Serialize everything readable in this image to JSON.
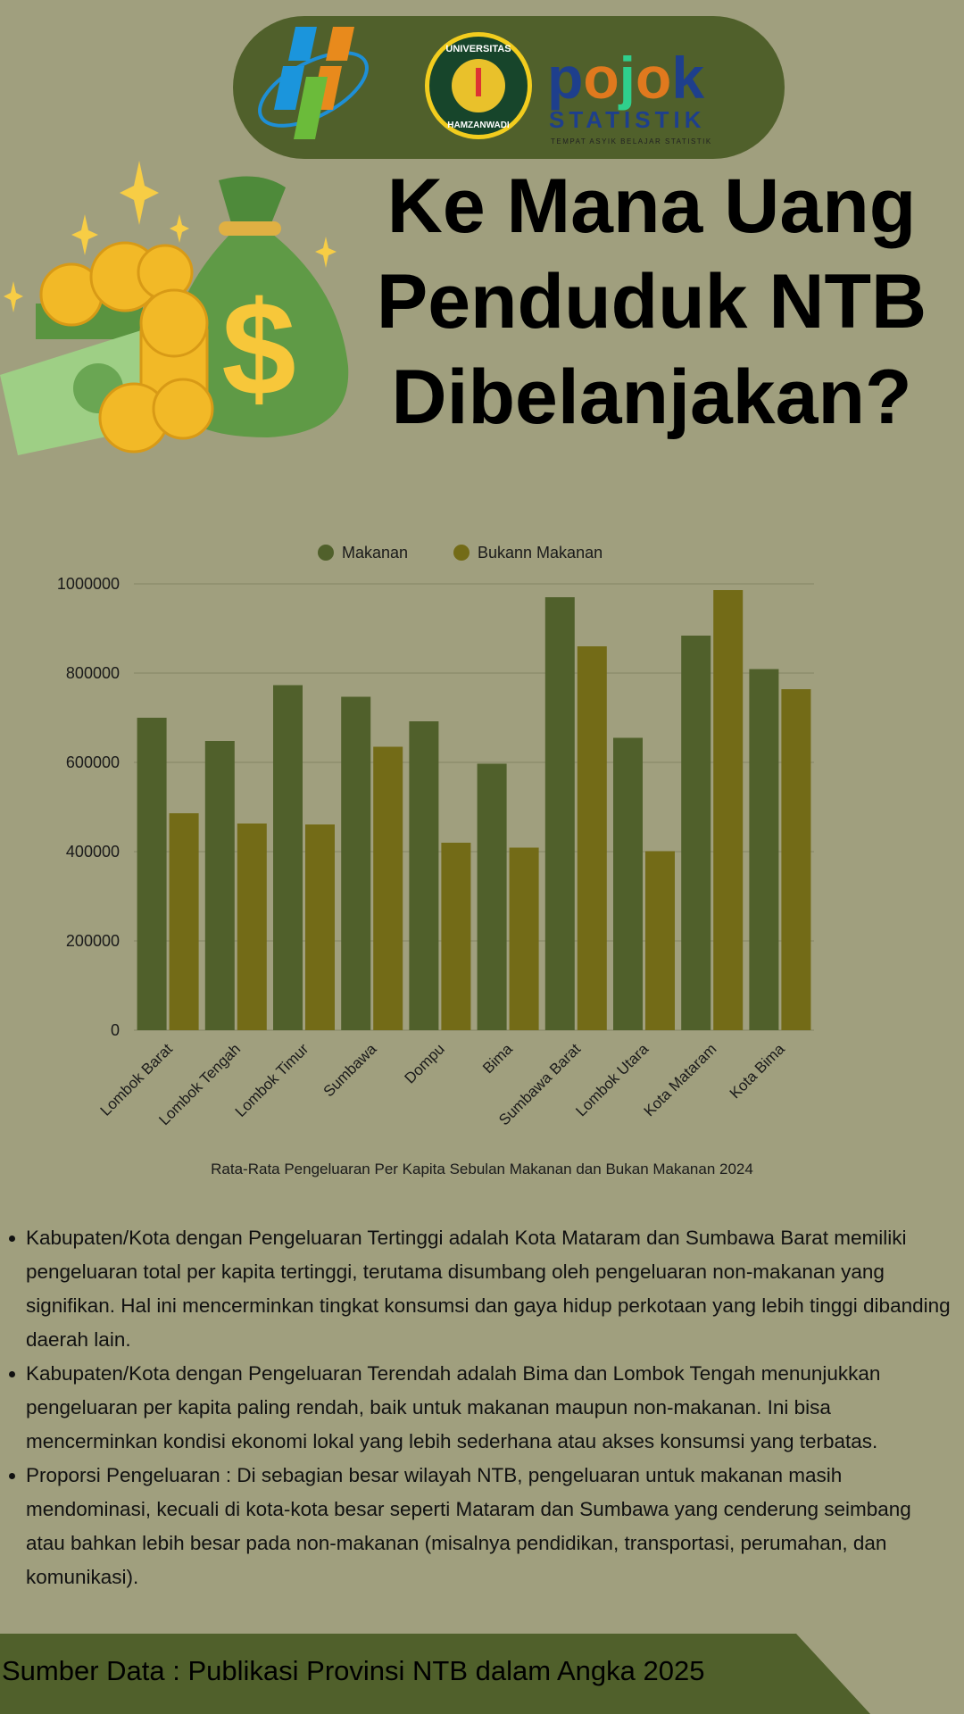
{
  "header": {
    "logos": {
      "bps": "BPS",
      "university": "UNIVERSITAS HAMZANWADI",
      "pojok_word": "pojok",
      "pojok_sub": "STATISTIK",
      "pojok_tagline": "TEMPAT ASYIK BELAJAR STATISTIK"
    }
  },
  "title": {
    "line1": "Ke Mana Uang",
    "line2": "Penduduk NTB",
    "line3": "Dibelanjakan?"
  },
  "colors": {
    "background": "#a09f7e",
    "dark_green": "#50602b",
    "olive": "#736b17"
  },
  "chart_data": {
    "type": "bar",
    "title": "",
    "caption": "Rata-Rata Pengeluaran Per Kapita Sebulan Makanan dan Bukan Makanan 2024",
    "xlabel": "",
    "ylabel": "",
    "ylim": [
      0,
      1000000
    ],
    "yticks": [
      "0",
      "200000",
      "400000",
      "600000",
      "800000",
      "1000000"
    ],
    "grid": true,
    "legend_position": "top-center",
    "categories": [
      "Lombok Barat",
      "Lombok Tengah",
      "Lombok Timur",
      "Sumbawa",
      "Dompu",
      "Bima",
      "Sumbawa Barat",
      "Lombok Utara",
      "Kota Mataram",
      "Kota Bima"
    ],
    "series": [
      {
        "name": "Makanan",
        "color": "#50602b",
        "values": [
          700000,
          648000,
          773000,
          747000,
          692000,
          597000,
          970000,
          655000,
          884000,
          809000
        ]
      },
      {
        "name": "Bukann Makanan",
        "color": "#736b17",
        "values": [
          486000,
          463000,
          461000,
          635000,
          420000,
          409000,
          860000,
          401000,
          986000,
          764000
        ]
      }
    ]
  },
  "notes": [
    "Kabupaten/Kota dengan Pengeluaran Tertinggi adalah Kota Mataram dan Sumbawa Barat memiliki pengeluaran total per kapita tertinggi, terutama disumbang oleh pengeluaran non-makanan yang signifikan. Hal ini mencerminkan tingkat konsumsi dan gaya hidup perkotaan yang lebih tinggi dibanding daerah lain.",
    "Kabupaten/Kota dengan Pengeluaran Terendah adalah Bima dan Lombok Tengah menunjukkan pengeluaran per kapita paling rendah, baik untuk makanan maupun non-makanan. Ini bisa mencerminkan kondisi ekonomi lokal yang lebih sederhana atau akses konsumsi yang terbatas.",
    "Proporsi Pengeluaran : Di sebagian besar wilayah NTB, pengeluaran untuk makanan masih mendominasi, kecuali di kota-kota besar seperti Mataram dan Sumbawa yang cenderung seimbang atau bahkan lebih besar pada non-makanan (misalnya pendidikan, transportasi, perumahan, dan komunikasi)."
  ],
  "footer": {
    "source": "Sumber Data : Publikasi Provinsi NTB dalam Angka 2025"
  }
}
